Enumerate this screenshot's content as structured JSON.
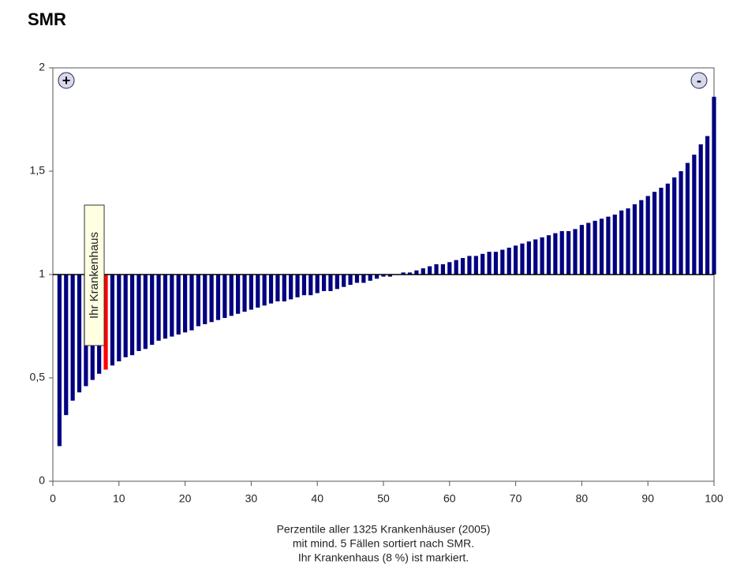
{
  "chart_data": {
    "type": "bar",
    "title": "SMR",
    "x_label_lines": [
      "Perzentile aller 1325 Krankenhäuser (2005)",
      "mit mind. 5 Fällen sortiert nach SMR.",
      "Ihr Krankenhaus (8 %) ist markiert."
    ],
    "x": [
      1,
      2,
      3,
      4,
      5,
      6,
      7,
      8,
      9,
      10,
      11,
      12,
      13,
      14,
      15,
      16,
      17,
      18,
      19,
      20,
      21,
      22,
      23,
      24,
      25,
      26,
      27,
      28,
      29,
      30,
      31,
      32,
      33,
      34,
      35,
      36,
      37,
      38,
      39,
      40,
      41,
      42,
      43,
      44,
      45,
      46,
      47,
      48,
      49,
      50,
      51,
      52,
      53,
      54,
      55,
      56,
      57,
      58,
      59,
      60,
      61,
      62,
      63,
      64,
      65,
      66,
      67,
      68,
      69,
      70,
      71,
      72,
      73,
      74,
      75,
      76,
      77,
      78,
      79,
      80,
      81,
      82,
      83,
      84,
      85,
      86,
      87,
      88,
      89,
      90,
      91,
      92,
      93,
      94,
      95,
      96,
      97,
      98,
      99,
      100
    ],
    "values": [
      0.17,
      0.32,
      0.39,
      0.43,
      0.46,
      0.49,
      0.52,
      0.54,
      0.56,
      0.58,
      0.6,
      0.61,
      0.63,
      0.64,
      0.66,
      0.68,
      0.69,
      0.7,
      0.71,
      0.72,
      0.73,
      0.75,
      0.76,
      0.77,
      0.78,
      0.79,
      0.8,
      0.81,
      0.82,
      0.83,
      0.84,
      0.85,
      0.86,
      0.87,
      0.87,
      0.88,
      0.89,
      0.9,
      0.9,
      0.91,
      0.92,
      0.92,
      0.93,
      0.94,
      0.95,
      0.96,
      0.96,
      0.97,
      0.98,
      0.99,
      0.99,
      1.0,
      1.01,
      1.01,
      1.02,
      1.03,
      1.04,
      1.05,
      1.05,
      1.06,
      1.07,
      1.08,
      1.09,
      1.09,
      1.1,
      1.11,
      1.11,
      1.12,
      1.13,
      1.14,
      1.15,
      1.16,
      1.17,
      1.18,
      1.19,
      1.2,
      1.21,
      1.21,
      1.22,
      1.24,
      1.25,
      1.26,
      1.27,
      1.28,
      1.29,
      1.31,
      1.32,
      1.34,
      1.36,
      1.38,
      1.4,
      1.42,
      1.44,
      1.47,
      1.5,
      1.54,
      1.58,
      1.63,
      1.67,
      1.86
    ],
    "color": "#000080",
    "baseline": 1,
    "highlight": {
      "x": 8,
      "color": "#ff0000",
      "label": "Ihr Krankenhaus"
    },
    "xlim": [
      0,
      100
    ],
    "xticks": [
      0,
      10,
      20,
      30,
      40,
      50,
      60,
      70,
      80,
      90,
      100
    ],
    "ylim": [
      0,
      2
    ],
    "yticks": [
      0,
      {
        "value": 0.5,
        "label": "0,5"
      },
      1,
      {
        "value": 1.5,
        "label": "1,5"
      },
      2
    ],
    "buttons": [
      "+",
      "-"
    ]
  }
}
